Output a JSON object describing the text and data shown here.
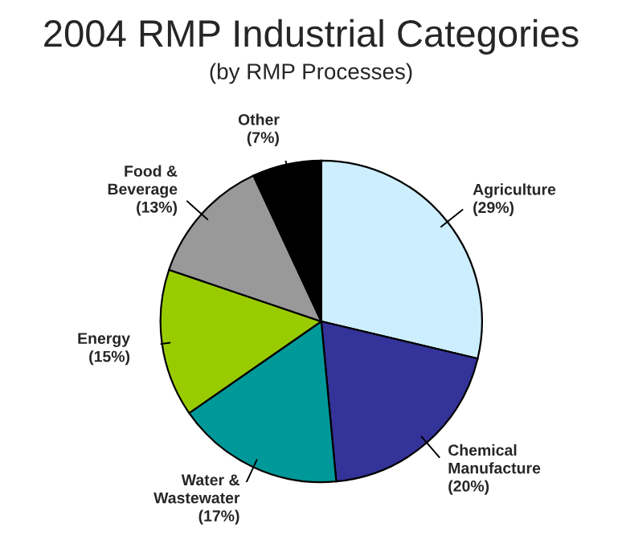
{
  "chart_data": {
    "type": "pie",
    "title": "2004 RMP Industrial Categories",
    "subtitle": "(by RMP Processes)",
    "categories": [
      "Agriculture",
      "Chemical\nManufacture",
      "Water &\nWastewater",
      "Energy",
      "Food &\nBeverage",
      "Other"
    ],
    "values": [
      29,
      20,
      17,
      15,
      13,
      7
    ],
    "value_labels": [
      "(29%)",
      "(20%)",
      "(17%)",
      "(15%)",
      "(13%)",
      "(7%)"
    ],
    "colors": [
      "#cceeff",
      "#333399",
      "#009999",
      "#99cc00",
      "#999999",
      "#000000"
    ],
    "legend": false
  }
}
